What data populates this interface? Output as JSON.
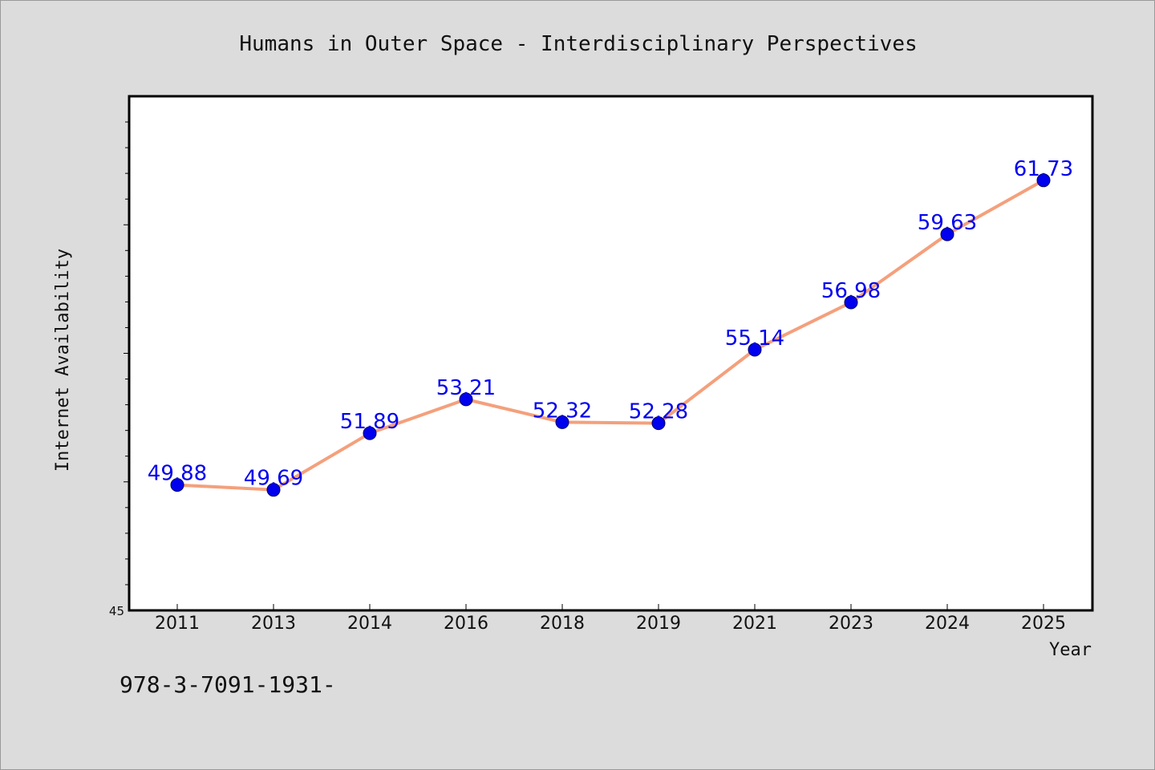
{
  "chart_data": {
    "type": "line",
    "title": "Humans in Outer Space - Interdisciplinary Perspectives",
    "xlabel": "Year",
    "ylabel": "Internet Availability",
    "categories": [
      "2011",
      "2013",
      "2014",
      "2016",
      "2018",
      "2019",
      "2021",
      "2023",
      "2024",
      "2025"
    ],
    "series": [
      {
        "values": [
          49.88,
          49.69,
          51.89,
          53.21,
          52.32,
          52.28,
          55.14,
          56.98,
          59.63,
          61.73
        ],
        "labels": [
          "49.88",
          "49.69",
          "51.89",
          "53.21",
          "52.32",
          "52.28",
          "55.14",
          "56.98",
          "59.63",
          "61.73"
        ]
      }
    ],
    "ylim": [
      45,
      65
    ],
    "y_tick_labels": [
      "45"
    ],
    "grid": false,
    "legend": "none",
    "line_color": "#f4a07c",
    "marker_color": "#0000ee",
    "label_color": "#0000ee",
    "background_color": "#dcdcdc",
    "plot_background_color": "#ffffff"
  },
  "footer": {
    "text": "978-3-7091-1931-"
  }
}
